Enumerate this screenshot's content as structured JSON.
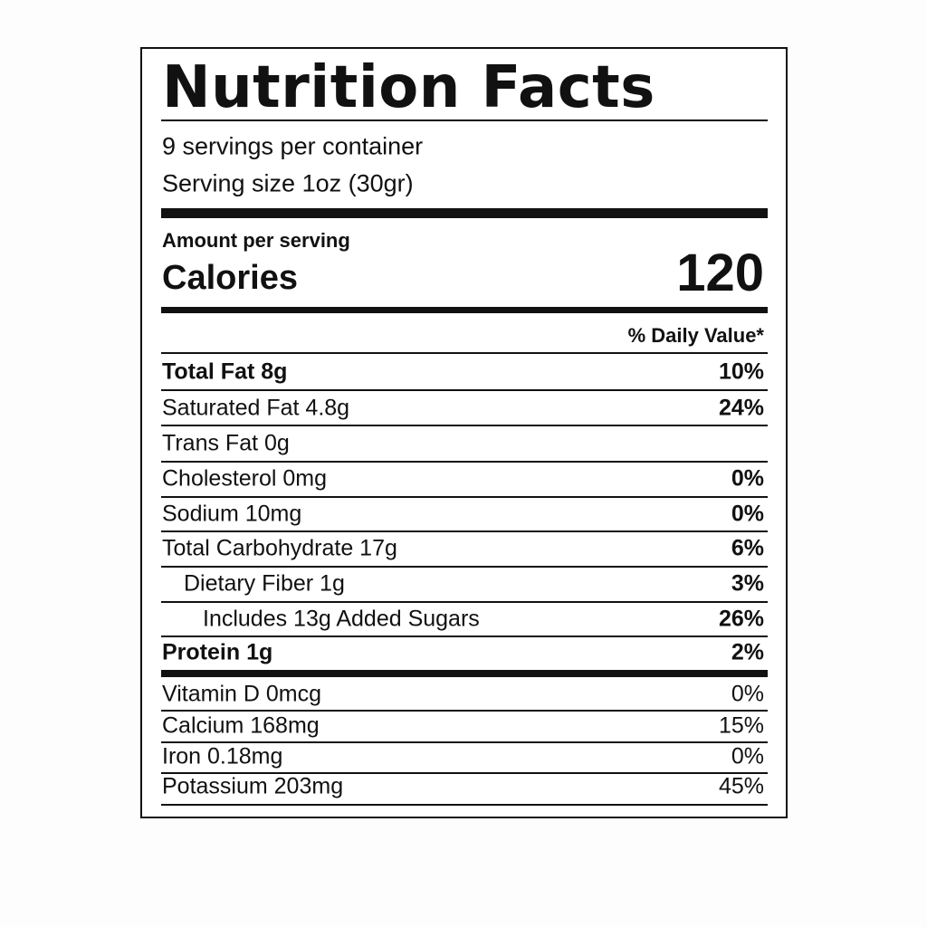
{
  "header": {
    "title": "Nutrition Facts",
    "servings": "9 servings per container",
    "serving_size": "Serving size 1oz (30gr)"
  },
  "calories": {
    "caption": "Amount per serving",
    "label": "Calories",
    "value": "120"
  },
  "daily_value_header": "% Daily Value*",
  "nutrients": {
    "rows": [
      {
        "label": "Total Fat 8g",
        "dv": "10%"
      },
      {
        "label": "Saturated Fat 4.8g",
        "dv": "24%"
      },
      {
        "label": "Trans Fat 0g"
      },
      {
        "label": "Cholesterol 0mg",
        "dv": "0%"
      },
      {
        "label": "Sodium 10mg",
        "dv": "0%"
      },
      {
        "label": "Total Carbohydrate 17g",
        "dv": "6%"
      },
      {
        "label": "Dietary Fiber 1g",
        "dv": "3%"
      },
      {
        "label": "Includes 13g Added Sugars",
        "dv": "26%"
      },
      {
        "label": "Protein 1g",
        "dv": "2%"
      }
    ]
  },
  "vitamins": {
    "rows": [
      {
        "label": "Vitamin D 0mcg",
        "dv": "0%"
      },
      {
        "label": "Calcium 168mg",
        "dv": "15%"
      },
      {
        "label": "Iron 0.18mg",
        "dv": "0%"
      },
      {
        "label": "Potassium 203mg",
        "dv": "45%"
      }
    ]
  }
}
